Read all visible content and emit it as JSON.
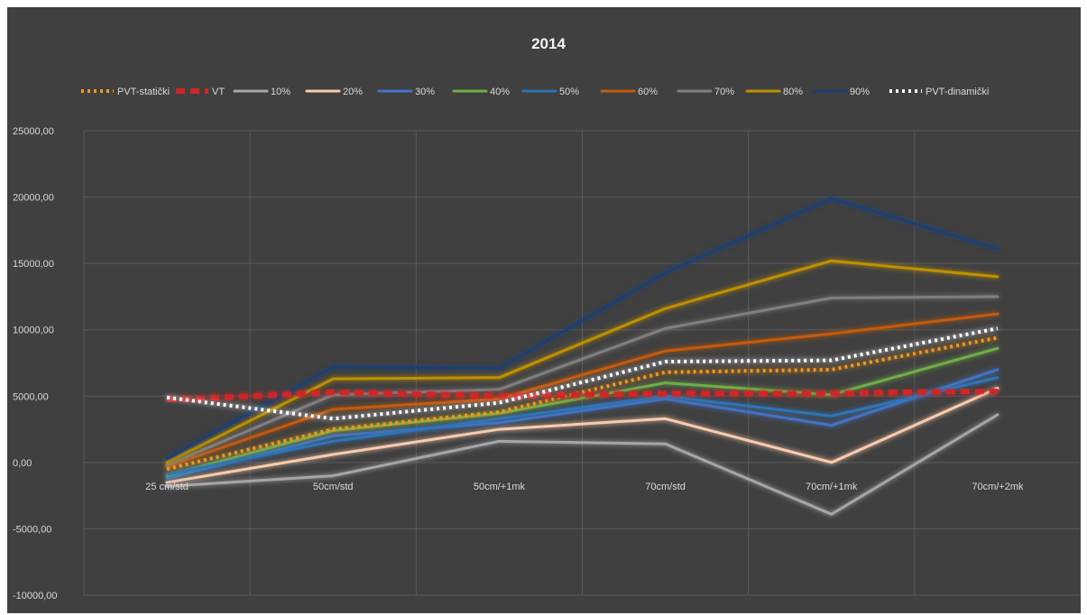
{
  "chart_data": {
    "type": "line",
    "title": "2014",
    "xlabel": "",
    "ylabel": "",
    "categories": [
      "25 cm/std",
      "50cm/std",
      "50cm/+1mk",
      "70cm/std",
      "70cm/+1mk",
      "70cm/+2mk"
    ],
    "ylim": [
      -10000,
      25000
    ],
    "ytick_step": 5000,
    "ytick_labels": [
      "-10000,00",
      "-5000,00",
      "0,00",
      "5000,00",
      "10000,00",
      "15000,00",
      "20000,00",
      "25000,00"
    ],
    "grid": true,
    "legend_position": "top",
    "background": "#404040",
    "series": [
      {
        "name": "PVT-statički",
        "color": "#f2961e",
        "style": "dotted",
        "values": [
          -500,
          2500,
          3800,
          6800,
          7000,
          9400
        ]
      },
      {
        "name": "VT",
        "color": "#d02626",
        "style": "dashed",
        "values": [
          4700,
          5300,
          5000,
          5200,
          5200,
          5400
        ]
      },
      {
        "name": "10%",
        "color": "#a6a6a6",
        "style": "solid",
        "values": [
          -1800,
          -1000,
          1600,
          1400,
          -3900,
          3600
        ]
      },
      {
        "name": "20%",
        "color": "#f8cbad",
        "style": "solid",
        "values": [
          -1500,
          600,
          2500,
          3300,
          0,
          5600
        ]
      },
      {
        "name": "30%",
        "color": "#4472c4",
        "style": "solid",
        "values": [
          -1200,
          2000,
          3000,
          4800,
          2800,
          7000
        ]
      },
      {
        "name": "40%",
        "color": "#70ad47",
        "style": "solid",
        "values": [
          -1000,
          2400,
          3700,
          6000,
          5100,
          8600
        ]
      },
      {
        "name": "50%",
        "color": "#2e75b6",
        "style": "solid",
        "values": [
          -900,
          1600,
          3300,
          5000,
          3500,
          6400
        ]
      },
      {
        "name": "60%",
        "color": "#c55a11",
        "style": "solid",
        "values": [
          -300,
          4000,
          4800,
          8400,
          9700,
          11200
        ]
      },
      {
        "name": "70%",
        "color": "#7f7f7f",
        "style": "solid",
        "values": [
          -200,
          5100,
          5500,
          10100,
          12400,
          12500
        ]
      },
      {
        "name": "80%",
        "color": "#bf9000",
        "style": "solid",
        "values": [
          0,
          6300,
          6400,
          11600,
          15200,
          14000
        ]
      },
      {
        "name": "90%",
        "color": "#1f3f73",
        "style": "solid",
        "values": [
          300,
          7200,
          7100,
          14300,
          19900,
          16100
        ]
      },
      {
        "name": "PVT-dinamički",
        "color": "#ffffff",
        "style": "dotted",
        "values": [
          4900,
          3300,
          4500,
          7600,
          7700,
          10100
        ]
      }
    ]
  }
}
